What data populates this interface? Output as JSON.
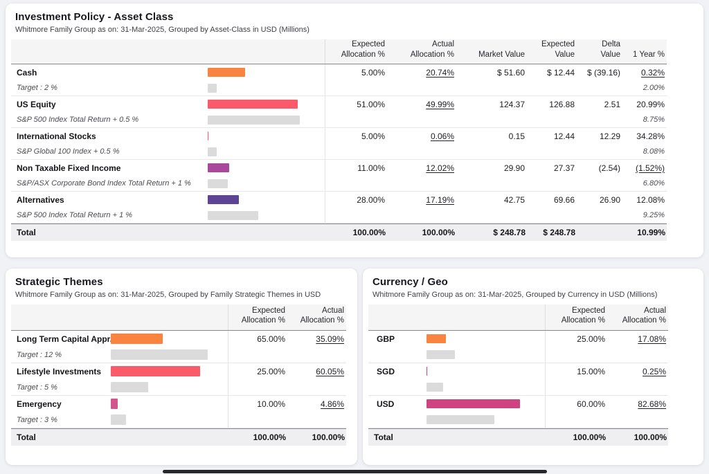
{
  "asset_panel": {
    "title": "Investment Policy - Asset Class",
    "subtitle": "Whitmore Family Group as on: 31-Mar-2025, Grouped by Asset-Class in USD (Millions)",
    "headers": {
      "expected_alloc": "Expected\nAllocation %",
      "actual_alloc": "Actual\nAllocation %",
      "market_value": "Market Value",
      "expected_value": "Expected\nValue",
      "delta_value": "Delta\nValue",
      "one_year": "1 Year %"
    },
    "rows": [
      {
        "name": "Cash",
        "sub": "Target : 2 %",
        "color": "#F88440",
        "expected_pct": 5.0,
        "actual_pct": 20.74,
        "expected": "5.00%",
        "actual": "20.74%",
        "market_value": "$ 51.60",
        "expected_value": "$ 12.44",
        "delta_value": "$ (39.16)",
        "one_year": "0.32%",
        "benchmark": "2.00%"
      },
      {
        "name": "US Equity",
        "sub": "S&P 500 Index Total Return + 0.5 %",
        "color": "#FA5A69",
        "expected_pct": 51.0,
        "actual_pct": 49.99,
        "expected": "51.00%",
        "actual": "49.99%",
        "market_value": "124.37",
        "expected_value": "126.88",
        "delta_value": "2.51",
        "one_year": "20.99%",
        "benchmark": "8.75%"
      },
      {
        "name": "International Stocks",
        "sub": "S&P Global 100 Index + 0.5 %",
        "color": "#ED5E68",
        "expected_pct": 5.0,
        "actual_pct": 0.06,
        "expected": "5.00%",
        "actual": "0.06%",
        "market_value": "0.15",
        "expected_value": "12.44",
        "delta_value": "12.29",
        "one_year": "34.28%",
        "benchmark": "8.08%"
      },
      {
        "name": "Non Taxable Fixed Income",
        "sub": "S&P/ASX Corporate Bond Index Total Return + 1 %",
        "color": "#A8499C",
        "expected_pct": 11.0,
        "actual_pct": 12.02,
        "expected": "11.00%",
        "actual": "12.02%",
        "market_value": "29.90",
        "expected_value": "27.37",
        "delta_value": "(2.54)",
        "one_year": "(1.52%)",
        "benchmark": "6.80%"
      },
      {
        "name": "Alternatives",
        "sub": "S&P 500 Index Total Return + 1 %",
        "color": "#5D4494",
        "expected_pct": 28.0,
        "actual_pct": 17.19,
        "expected": "28.00%",
        "actual": "17.19%",
        "market_value": "42.75",
        "expected_value": "69.66",
        "delta_value": "26.90",
        "one_year": "12.08%",
        "benchmark": "9.25%"
      }
    ],
    "total": {
      "label": "Total",
      "expected": "100.00%",
      "actual": "100.00%",
      "market_value": "$ 248.78",
      "expected_value": "$ 248.78",
      "delta_value": "",
      "one_year": "10.99%"
    }
  },
  "themes_panel": {
    "title": "Strategic Themes",
    "subtitle": "Whitmore Family Group as on: 31-Mar-2025, Grouped by Family Strategic Themes in USD",
    "headers": {
      "expected_alloc": "Expected\nAllocation %",
      "actual_alloc": "Actual\nAllocation %"
    },
    "rows": [
      {
        "name": "Long Term Capital Appr...",
        "sub": "Target : 12 %",
        "color": "#F88440",
        "expected_pct": 65.0,
        "actual_pct": 35.09,
        "expected": "65.00%",
        "actual": "35.09%"
      },
      {
        "name": "Lifestyle Investments",
        "sub": "Target : 5 %",
        "color": "#FA5A69",
        "expected_pct": 25.0,
        "actual_pct": 60.05,
        "expected": "25.00%",
        "actual": "60.05%"
      },
      {
        "name": "Emergency",
        "sub": "Target : 3 %",
        "color": "#D4548F",
        "expected_pct": 10.0,
        "actual_pct": 4.86,
        "expected": "10.00%",
        "actual": "4.86%"
      }
    ],
    "total": {
      "label": "Total",
      "expected": "100.00%",
      "actual": "100.00%"
    }
  },
  "currency_panel": {
    "title": "Currency / Geo",
    "subtitle": "Whitmore Family Group as on: 31-Mar-2025, Grouped by Currency in USD (Millions)",
    "headers": {
      "expected_alloc": "Expected\nAllocation %",
      "actual_alloc": "Actual\nAllocation %"
    },
    "rows": [
      {
        "name": "GBP",
        "color": "#F88440",
        "expected_pct": 25.0,
        "actual_pct": 17.08,
        "expected": "25.00%",
        "actual": "17.08%"
      },
      {
        "name": "SGD",
        "color": "#A8499C",
        "expected_pct": 15.0,
        "actual_pct": 0.25,
        "expected": "15.00%",
        "actual": "0.25%"
      },
      {
        "name": "USD",
        "color": "#CE4380",
        "expected_pct": 60.0,
        "actual_pct": 82.68,
        "expected": "60.00%",
        "actual": "82.68%"
      }
    ],
    "total": {
      "label": "Total",
      "expected": "100.00%",
      "actual": "100.00%"
    }
  },
  "colors": {
    "target_bar": "#dbdbdb",
    "header_bg": "#f5f5f6",
    "total_bg": "#efeff1"
  },
  "chart_data": [
    {
      "type": "bar",
      "orientation": "horizontal",
      "title": "Investment Policy - Asset Class",
      "categories": [
        "Cash",
        "US Equity",
        "International Stocks",
        "Non Taxable Fixed Income",
        "Alternatives"
      ],
      "series": [
        {
          "name": "Actual Allocation %",
          "values": [
            20.74,
            49.99,
            0.06,
            12.02,
            17.19
          ]
        },
        {
          "name": "Expected Allocation %",
          "values": [
            5.0,
            51.0,
            5.0,
            11.0,
            28.0
          ]
        }
      ],
      "xlim": [
        0,
        100
      ],
      "grid": false,
      "legend": "none"
    },
    {
      "type": "bar",
      "orientation": "horizontal",
      "title": "Strategic Themes",
      "categories": [
        "Long Term Capital Appr...",
        "Lifestyle Investments",
        "Emergency"
      ],
      "series": [
        {
          "name": "Actual Allocation %",
          "values": [
            35.09,
            60.05,
            4.86
          ]
        },
        {
          "name": "Expected Allocation %",
          "values": [
            65.0,
            25.0,
            10.0
          ]
        }
      ],
      "xlim": [
        0,
        100
      ],
      "grid": false,
      "legend": "none"
    },
    {
      "type": "bar",
      "orientation": "horizontal",
      "title": "Currency / Geo",
      "categories": [
        "GBP",
        "SGD",
        "USD"
      ],
      "series": [
        {
          "name": "Actual Allocation %",
          "values": [
            17.08,
            0.25,
            82.68
          ]
        },
        {
          "name": "Expected Allocation %",
          "values": [
            25.0,
            15.0,
            60.0
          ]
        }
      ],
      "xlim": [
        0,
        100
      ],
      "grid": false,
      "legend": "none"
    }
  ]
}
